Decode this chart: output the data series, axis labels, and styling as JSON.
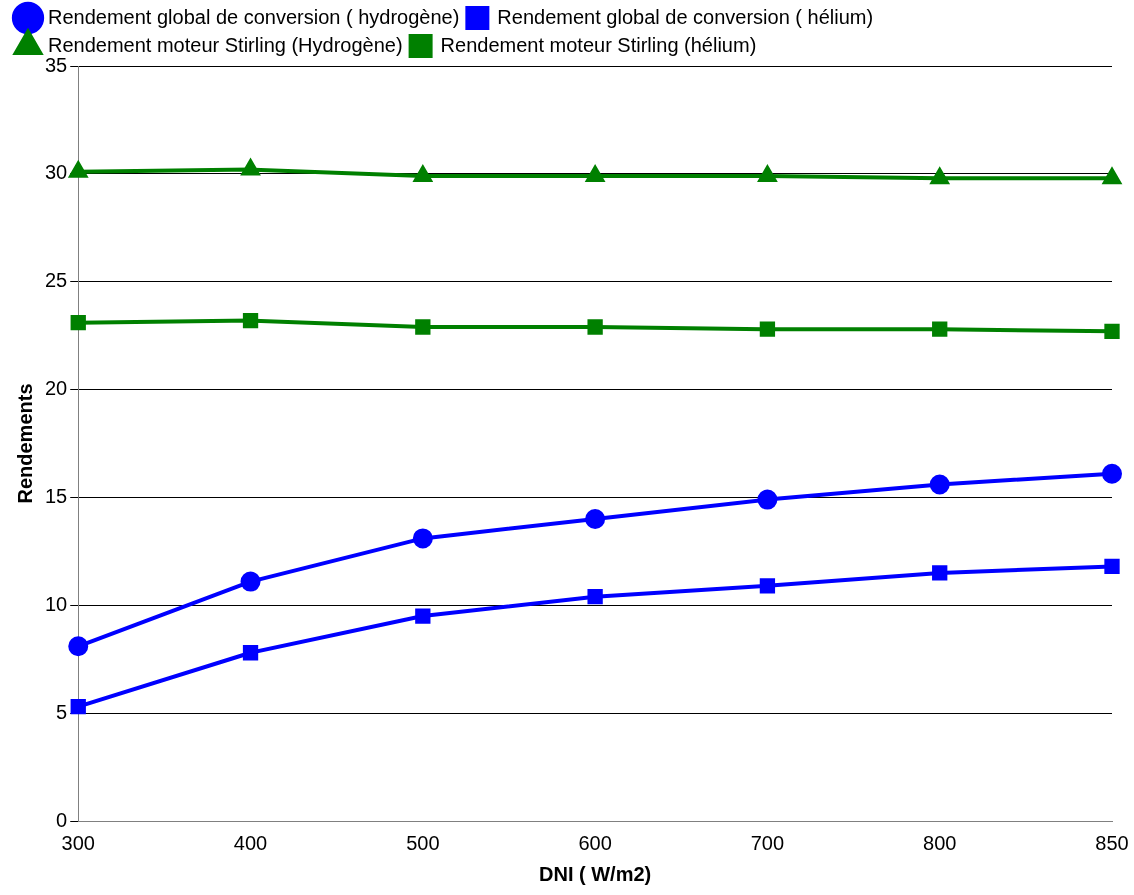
{
  "chart_data": {
    "type": "line",
    "xlabel": "DNI ( W/m2)",
    "ylabel": "Rendements",
    "categories": [
      "300",
      "400",
      "500",
      "600",
      "700",
      "800",
      "850"
    ],
    "series": [
      {
        "name": "Rendement global de conversion ( hydrogène)",
        "color": "#0000ff",
        "marker": "circle",
        "values": [
          8.1,
          11.1,
          13.1,
          14.0,
          14.9,
          15.6,
          16.1
        ]
      },
      {
        "name": "Rendement global de conversion ( hélium)",
        "color": "#0000ff",
        "marker": "square",
        "values": [
          5.3,
          7.8,
          9.5,
          10.4,
          10.9,
          11.5,
          11.8
        ]
      },
      {
        "name": "Rendement moteur Stirling (Hydrogène)",
        "color": "#008000",
        "marker": "triangle",
        "values": [
          30.1,
          30.2,
          29.9,
          29.9,
          29.9,
          29.8,
          29.8
        ]
      },
      {
        "name": "Rendement moteur Stirling (hélium)",
        "color": "#008000",
        "marker": "square",
        "values": [
          23.1,
          23.2,
          22.9,
          22.9,
          22.8,
          22.8,
          22.7
        ]
      }
    ],
    "ylim": [
      0,
      35
    ],
    "yticks": [
      0,
      5,
      10,
      15,
      20,
      25,
      30,
      35
    ],
    "grid": "y",
    "legend": "top"
  }
}
